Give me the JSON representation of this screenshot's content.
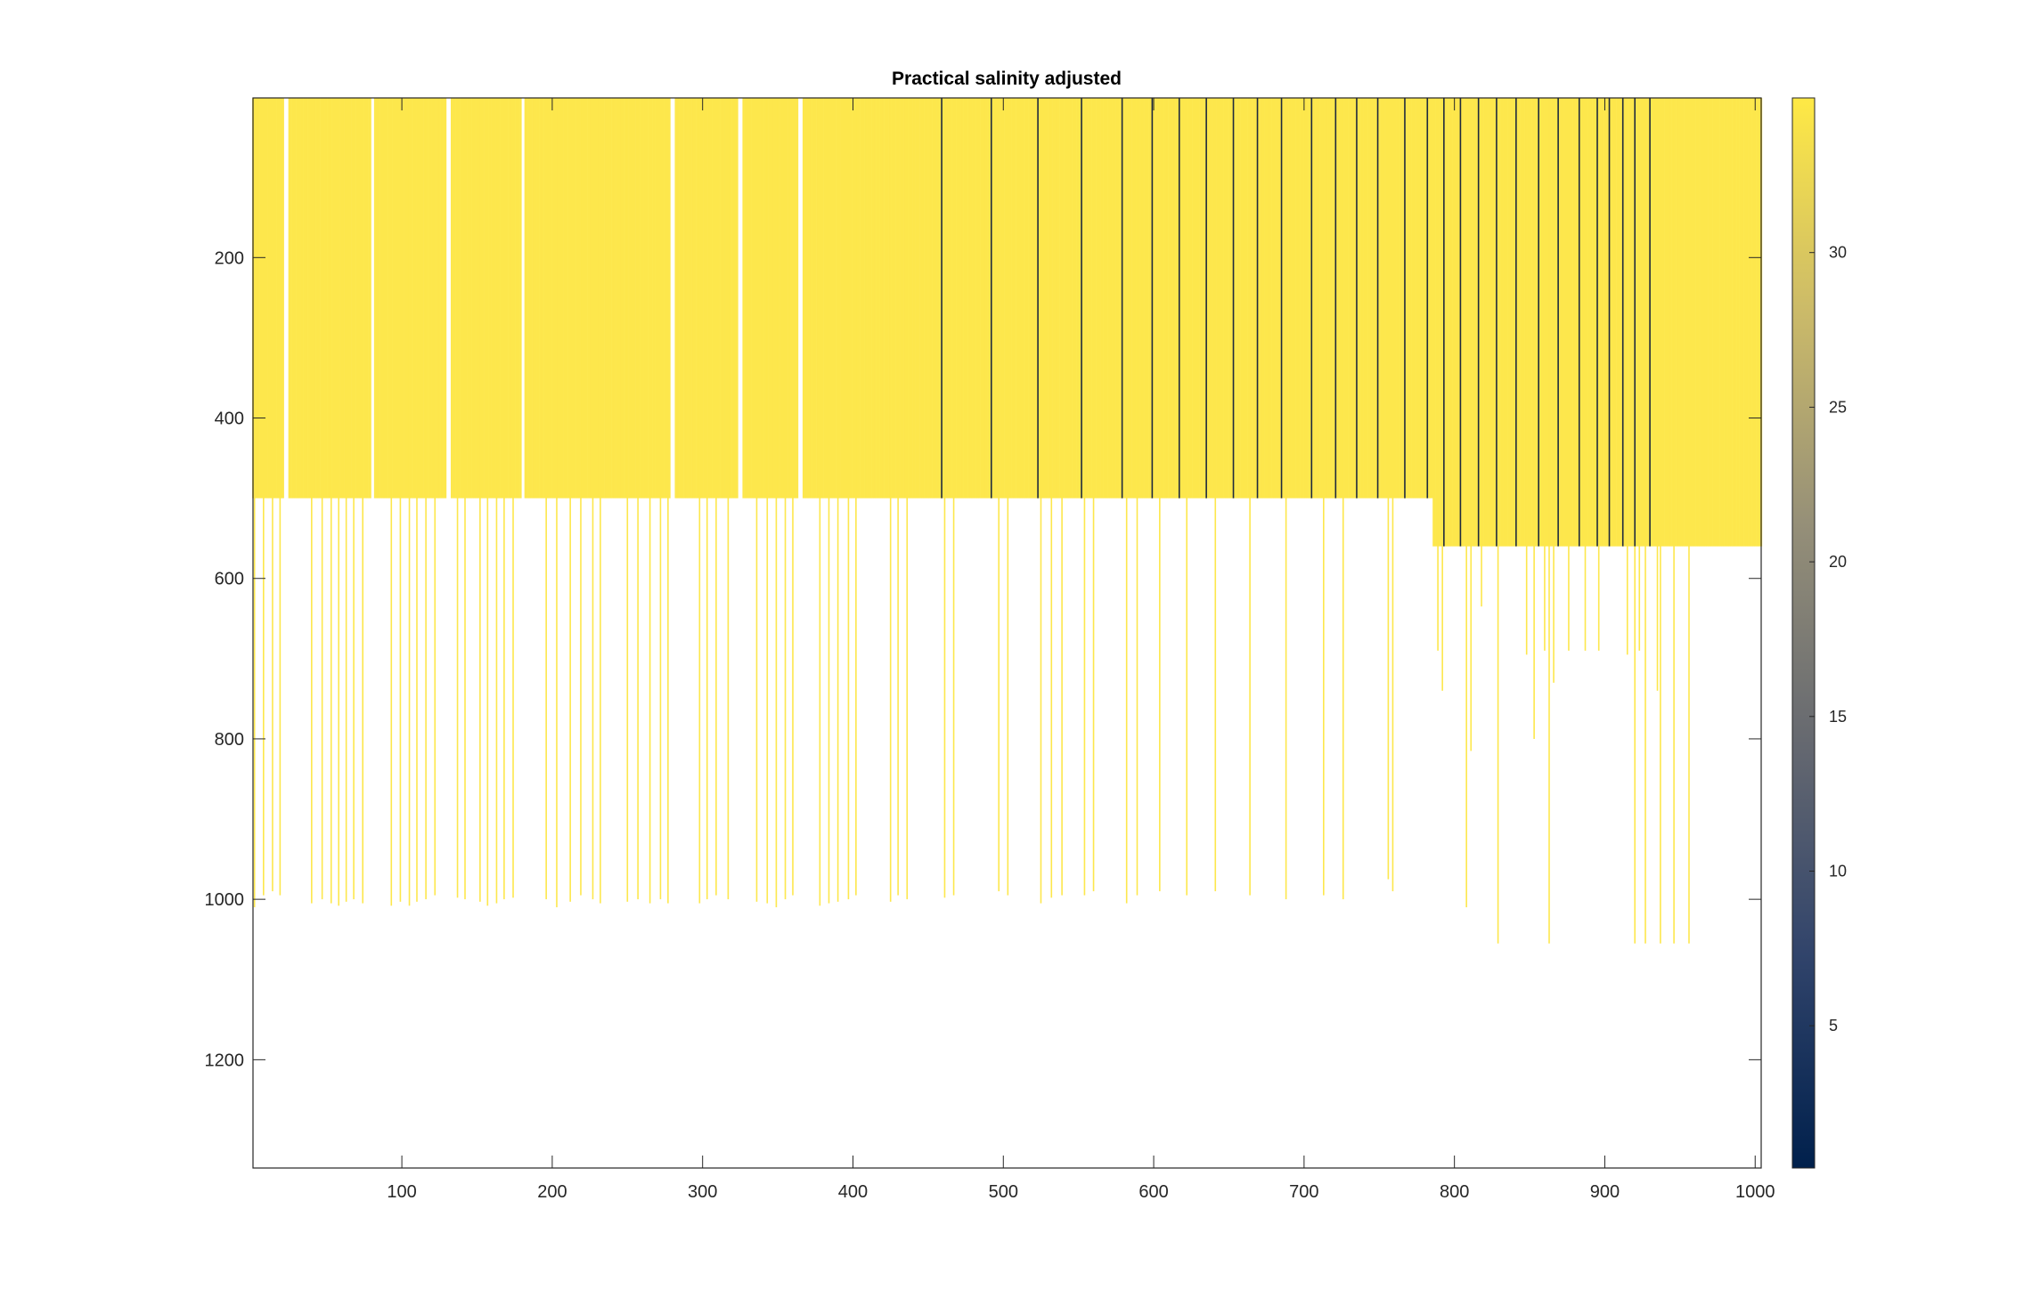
{
  "chart_data": {
    "type": "heatmap",
    "title": "Practical salinity adjusted",
    "xlabel": "",
    "ylabel": "",
    "colorbar_label": "",
    "xlim": [
      1,
      1004
    ],
    "ylim": [
      1335,
      1
    ],
    "y_direction": "reversed",
    "xticks": [
      100,
      200,
      300,
      400,
      500,
      600,
      700,
      800,
      900,
      1000
    ],
    "xtick_labels": [
      "100",
      "200",
      "300",
      "400",
      "500",
      "600",
      "700",
      "800",
      "900",
      "1000"
    ],
    "yticks": [
      200,
      400,
      600,
      800,
      1000,
      1200
    ],
    "ytick_labels": [
      "200",
      "400",
      "600",
      "800",
      "1000",
      "1200"
    ],
    "clim": [
      0.4,
      35
    ],
    "colorbar_ticks": [
      5,
      10,
      15,
      20,
      25,
      30
    ],
    "colorbar_tick_labels": [
      "5",
      "10",
      "15",
      "20",
      "25",
      "30"
    ],
    "colormap": "cividis",
    "colormap_stops": [
      "#00204c",
      "#31446b",
      "#666970",
      "#958f78",
      "#cbba69",
      "#ffe945"
    ],
    "dominant_value": 34.5,
    "dominant_color": "#fde74c",
    "low_value_color": "#1f2a3d",
    "grid": false,
    "legend": "none",
    "top_row_depth": 1,
    "typical_profile_depth": 500,
    "late_profile_depth": 560,
    "profile_depth_breakpoint_column": 786,
    "column_gap_ranges": [
      [
        22,
        24
      ],
      [
        80,
        81
      ],
      [
        130,
        132
      ],
      [
        180,
        181
      ],
      [
        279,
        281
      ],
      [
        324,
        326
      ],
      [
        364,
        366
      ]
    ],
    "low_value_columns": [
      459,
      492,
      523,
      552,
      579,
      599,
      617,
      635,
      653,
      669,
      685,
      705,
      721,
      735,
      749,
      767,
      782,
      793,
      804,
      816,
      828,
      841,
      856,
      869,
      883,
      895,
      903,
      912,
      920,
      930
    ],
    "deep_profiles": [
      {
        "x": 2,
        "depth": 1010
      },
      {
        "x": 8,
        "depth": 995
      },
      {
        "x": 14,
        "depth": 990
      },
      {
        "x": 19,
        "depth": 995
      },
      {
        "x": 40,
        "depth": 1005
      },
      {
        "x": 47,
        "depth": 1000
      },
      {
        "x": 53,
        "depth": 1005
      },
      {
        "x": 58,
        "depth": 1008
      },
      {
        "x": 63,
        "depth": 1003
      },
      {
        "x": 68,
        "depth": 1000
      },
      {
        "x": 74,
        "depth": 1005
      },
      {
        "x": 93,
        "depth": 1008
      },
      {
        "x": 99,
        "depth": 1003
      },
      {
        "x": 105,
        "depth": 1008
      },
      {
        "x": 110,
        "depth": 1003
      },
      {
        "x": 116,
        "depth": 1000
      },
      {
        "x": 122,
        "depth": 995
      },
      {
        "x": 137,
        "depth": 998
      },
      {
        "x": 142,
        "depth": 1000
      },
      {
        "x": 152,
        "depth": 1003
      },
      {
        "x": 157,
        "depth": 1008
      },
      {
        "x": 163,
        "depth": 1005
      },
      {
        "x": 168,
        "depth": 1000
      },
      {
        "x": 174,
        "depth": 998
      },
      {
        "x": 196,
        "depth": 1000
      },
      {
        "x": 203,
        "depth": 1010
      },
      {
        "x": 212,
        "depth": 1003
      },
      {
        "x": 219,
        "depth": 995
      },
      {
        "x": 227,
        "depth": 1000
      },
      {
        "x": 232,
        "depth": 1005
      },
      {
        "x": 250,
        "depth": 1003
      },
      {
        "x": 257,
        "depth": 1000
      },
      {
        "x": 265,
        "depth": 1005
      },
      {
        "x": 272,
        "depth": 1000
      },
      {
        "x": 277,
        "depth": 1005
      },
      {
        "x": 298,
        "depth": 1005
      },
      {
        "x": 303,
        "depth": 1000
      },
      {
        "x": 309,
        "depth": 995
      },
      {
        "x": 317,
        "depth": 1000
      },
      {
        "x": 336,
        "depth": 1003
      },
      {
        "x": 343,
        "depth": 1005
      },
      {
        "x": 349,
        "depth": 1010
      },
      {
        "x": 355,
        "depth": 1000
      },
      {
        "x": 360,
        "depth": 995
      },
      {
        "x": 378,
        "depth": 1008
      },
      {
        "x": 384,
        "depth": 1005
      },
      {
        "x": 390,
        "depth": 1003
      },
      {
        "x": 397,
        "depth": 1000
      },
      {
        "x": 402,
        "depth": 995
      },
      {
        "x": 425,
        "depth": 1003
      },
      {
        "x": 430,
        "depth": 995
      },
      {
        "x": 436,
        "depth": 1000
      },
      {
        "x": 461,
        "depth": 998
      },
      {
        "x": 467,
        "depth": 995
      },
      {
        "x": 497,
        "depth": 990
      },
      {
        "x": 503,
        "depth": 995
      },
      {
        "x": 525,
        "depth": 1005
      },
      {
        "x": 532,
        "depth": 998
      },
      {
        "x": 539,
        "depth": 995
      },
      {
        "x": 554,
        "depth": 995
      },
      {
        "x": 560,
        "depth": 990
      },
      {
        "x": 582,
        "depth": 1005
      },
      {
        "x": 589,
        "depth": 995
      },
      {
        "x": 604,
        "depth": 990
      },
      {
        "x": 622,
        "depth": 995
      },
      {
        "x": 641,
        "depth": 990
      },
      {
        "x": 664,
        "depth": 995
      },
      {
        "x": 688,
        "depth": 1000
      },
      {
        "x": 713,
        "depth": 995
      },
      {
        "x": 726,
        "depth": 1000
      },
      {
        "x": 756,
        "depth": 975
      },
      {
        "x": 759,
        "depth": 990
      },
      {
        "x": 808,
        "depth": 1010
      },
      {
        "x": 829,
        "depth": 1055
      },
      {
        "x": 863,
        "depth": 1055
      },
      {
        "x": 920,
        "depth": 1055
      },
      {
        "x": 927,
        "depth": 1055
      },
      {
        "x": 937,
        "depth": 1055
      },
      {
        "x": 946,
        "depth": 1055
      },
      {
        "x": 956,
        "depth": 1055
      }
    ],
    "intermediate_profiles": [
      {
        "x": 789,
        "depth": 690
      },
      {
        "x": 792,
        "depth": 740
      },
      {
        "x": 811,
        "depth": 815
      },
      {
        "x": 818,
        "depth": 635
      },
      {
        "x": 848,
        "depth": 695
      },
      {
        "x": 853,
        "depth": 800
      },
      {
        "x": 860,
        "depth": 690
      },
      {
        "x": 866,
        "depth": 730
      },
      {
        "x": 876,
        "depth": 690
      },
      {
        "x": 887,
        "depth": 690
      },
      {
        "x": 896,
        "depth": 690
      },
      {
        "x": 915,
        "depth": 695
      },
      {
        "x": 923,
        "depth": 690
      },
      {
        "x": 935,
        "depth": 740
      }
    ]
  }
}
